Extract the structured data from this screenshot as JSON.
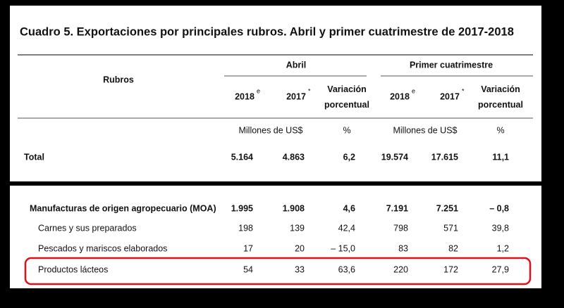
{
  "title": "Cuadro 5. Exportaciones por principales rubros. Abril y primer cuatrimestre de 2017-2018",
  "header": {
    "rubros": "Rubros",
    "groups": [
      {
        "label": "Abril",
        "columns": [
          {
            "label": "2018",
            "sup": "e"
          },
          {
            "label": "2017",
            "sup": "*"
          },
          {
            "label": "Variación porcentual"
          }
        ]
      },
      {
        "label": "Primer cuatrimestre",
        "columns": [
          {
            "label": "2018",
            "sup": "e"
          },
          {
            "label": "2017",
            "sup": "*"
          },
          {
            "label": "Variación porcentual"
          }
        ]
      }
    ],
    "units": [
      "Millones de US$",
      "%",
      "Millones de US$",
      "%"
    ]
  },
  "table": {
    "total": {
      "name": "Total",
      "values": [
        "5.164",
        "4.863",
        "6,2",
        "19.574",
        "17.615",
        "11,1"
      ]
    },
    "section": {
      "name": "Manufacturas de origen agropecuario (MOA)",
      "values": [
        "1.995",
        "1.908",
        "4,6",
        "7.191",
        "7.251",
        "– 0,8"
      ],
      "items": [
        {
          "name": "Carnes y sus preparados",
          "values": [
            "198",
            "139",
            "42,4",
            "798",
            "571",
            "39,8"
          ]
        },
        {
          "name": "Pescados y mariscos elaborados",
          "values": [
            "17",
            "20",
            "– 15,0",
            "83",
            "82",
            "1,2"
          ]
        },
        {
          "name": "Productos lácteos",
          "values": [
            "54",
            "33",
            "63,6",
            "220",
            "172",
            "27,9"
          ]
        }
      ]
    }
  }
}
